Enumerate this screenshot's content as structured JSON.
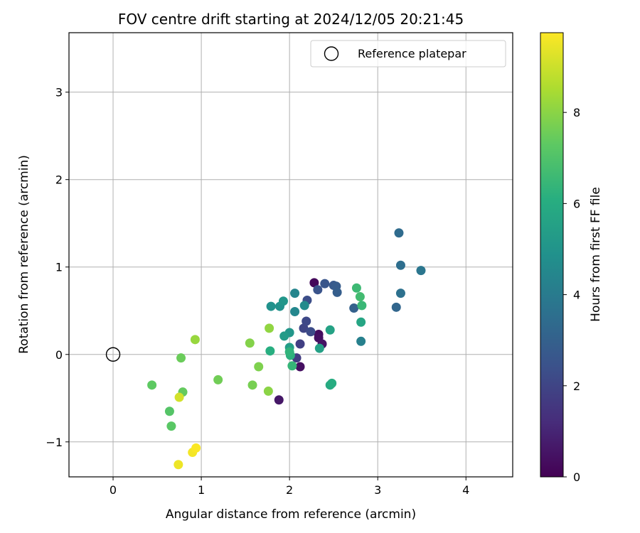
{
  "chart_data": {
    "type": "scatter",
    "title": "FOV centre drift starting at 2024/12/05 20:21:45",
    "xlabel": "Angular distance from reference (arcmin)",
    "ylabel": "Rotation from reference (arcmin)",
    "xlim": [
      -0.5,
      4.53
    ],
    "ylim": [
      -1.4,
      3.68
    ],
    "xticks": [
      0,
      1,
      2,
      3,
      4
    ],
    "yticks": [
      -1,
      0,
      1,
      2,
      3
    ],
    "xtick_labels": [
      "0",
      "1",
      "2",
      "3",
      "4"
    ],
    "ytick_labels": [
      "−1",
      "0",
      "1",
      "2",
      "3"
    ],
    "grid": true,
    "legend": {
      "position": "upper-right",
      "entries": [
        "Reference platepar"
      ]
    },
    "reference_point": {
      "x": 0,
      "y": 0,
      "label": "Reference platepar"
    },
    "colorbar": {
      "label": "Hours from first FF file",
      "colormap": "viridis",
      "range": [
        0,
        9.75
      ],
      "ticks": [
        0,
        2,
        4,
        6,
        8
      ],
      "tick_labels": [
        "0",
        "2",
        "4",
        "6",
        "8"
      ]
    },
    "points": [
      {
        "x": 2.28,
        "y": 0.82,
        "t": 0.2
      },
      {
        "x": 2.33,
        "y": 0.23,
        "t": 0.3
      },
      {
        "x": 2.33,
        "y": 0.19,
        "t": 0.4
      },
      {
        "x": 2.37,
        "y": 0.12,
        "t": 0.5
      },
      {
        "x": 2.12,
        "y": -0.14,
        "t": 0.4
      },
      {
        "x": 1.88,
        "y": -0.52,
        "t": 0.6
      },
      {
        "x": 2.08,
        "y": -0.04,
        "t": 1.7
      },
      {
        "x": 2.12,
        "y": 0.12,
        "t": 1.8
      },
      {
        "x": 2.16,
        "y": 0.3,
        "t": 2.0
      },
      {
        "x": 2.19,
        "y": 0.38,
        "t": 2.1
      },
      {
        "x": 2.24,
        "y": 0.26,
        "t": 2.2
      },
      {
        "x": 2.2,
        "y": 0.62,
        "t": 2.3
      },
      {
        "x": 2.32,
        "y": 0.74,
        "t": 2.5
      },
      {
        "x": 2.4,
        "y": 0.81,
        "t": 2.6
      },
      {
        "x": 2.5,
        "y": 0.79,
        "t": 2.7
      },
      {
        "x": 2.53,
        "y": 0.78,
        "t": 2.8
      },
      {
        "x": 2.54,
        "y": 0.71,
        "t": 2.9
      },
      {
        "x": 2.73,
        "y": 0.53,
        "t": 3.0
      },
      {
        "x": 3.21,
        "y": 0.54,
        "t": 3.2
      },
      {
        "x": 3.24,
        "y": 1.39,
        "t": 3.4
      },
      {
        "x": 3.26,
        "y": 1.02,
        "t": 3.5
      },
      {
        "x": 3.26,
        "y": 0.7,
        "t": 3.6
      },
      {
        "x": 3.49,
        "y": 0.96,
        "t": 3.8
      },
      {
        "x": 2.81,
        "y": 0.15,
        "t": 4.2
      },
      {
        "x": 2.06,
        "y": 0.7,
        "t": 4.4
      },
      {
        "x": 2.06,
        "y": 0.49,
        "t": 4.5
      },
      {
        "x": 2.17,
        "y": 0.56,
        "t": 4.6
      },
      {
        "x": 1.79,
        "y": 0.55,
        "t": 4.9
      },
      {
        "x": 1.89,
        "y": 0.55,
        "t": 4.9
      },
      {
        "x": 1.93,
        "y": 0.61,
        "t": 5.1
      },
      {
        "x": 2.0,
        "y": 0.25,
        "t": 5.1
      },
      {
        "x": 1.94,
        "y": 0.21,
        "t": 5.3
      },
      {
        "x": 2.0,
        "y": 0.08,
        "t": 5.4
      },
      {
        "x": 2.34,
        "y": 0.07,
        "t": 5.5
      },
      {
        "x": 2.46,
        "y": 0.28,
        "t": 5.6
      },
      {
        "x": 2.81,
        "y": 0.37,
        "t": 5.7
      },
      {
        "x": 2.46,
        "y": -0.35,
        "t": 5.9
      },
      {
        "x": 2.48,
        "y": -0.33,
        "t": 6.0
      },
      {
        "x": 1.78,
        "y": 0.04,
        "t": 6.1
      },
      {
        "x": 2.01,
        "y": -0.01,
        "t": 6.2
      },
      {
        "x": 2.0,
        "y": 0.03,
        "t": 6.3
      },
      {
        "x": 2.03,
        "y": -0.13,
        "t": 6.4
      },
      {
        "x": 2.76,
        "y": 0.76,
        "t": 6.6
      },
      {
        "x": 2.8,
        "y": 0.66,
        "t": 6.7
      },
      {
        "x": 2.82,
        "y": 0.56,
        "t": 6.5
      },
      {
        "x": 0.64,
        "y": -0.65,
        "t": 7.1
      },
      {
        "x": 0.66,
        "y": -0.82,
        "t": 7.2
      },
      {
        "x": 0.44,
        "y": -0.35,
        "t": 7.3
      },
      {
        "x": 0.79,
        "y": -0.43,
        "t": 7.4
      },
      {
        "x": 0.77,
        "y": -0.04,
        "t": 7.5
      },
      {
        "x": 1.19,
        "y": -0.29,
        "t": 7.6
      },
      {
        "x": 1.58,
        "y": -0.35,
        "t": 7.7
      },
      {
        "x": 1.65,
        "y": -0.14,
        "t": 7.8
      },
      {
        "x": 1.55,
        "y": 0.13,
        "t": 7.9
      },
      {
        "x": 1.76,
        "y": -0.42,
        "t": 8.0
      },
      {
        "x": 1.77,
        "y": 0.3,
        "t": 8.1
      },
      {
        "x": 0.93,
        "y": 0.17,
        "t": 8.2
      },
      {
        "x": 0.75,
        "y": -0.49,
        "t": 9.1
      },
      {
        "x": 0.74,
        "y": -1.26,
        "t": 9.5
      },
      {
        "x": 0.9,
        "y": -1.12,
        "t": 9.6
      },
      {
        "x": 0.94,
        "y": -1.07,
        "t": 9.7
      }
    ]
  }
}
